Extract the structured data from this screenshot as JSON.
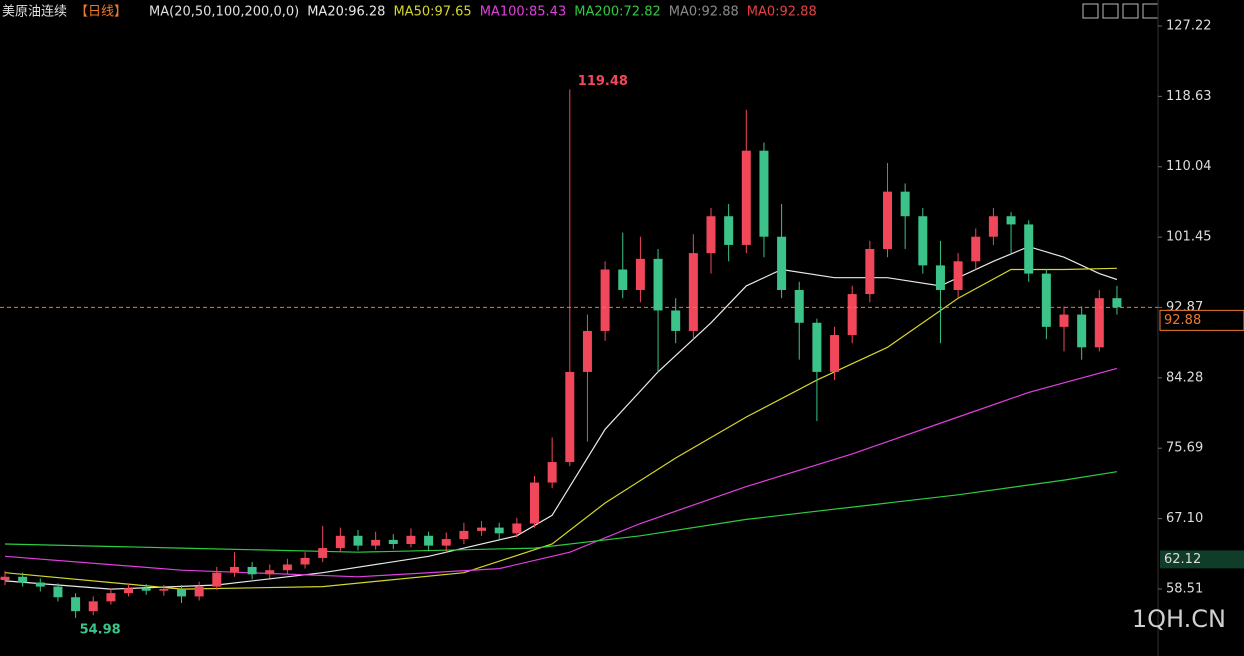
{
  "chart_data": {
    "type": "candlestick",
    "title": "美原油连续",
    "period": "【日线】",
    "ma_params": "MA(20,50,100,200,0,0)",
    "ylim": [
      50.33,
      130.39
    ],
    "yticks": [
      127.22,
      118.63,
      110.04,
      101.45,
      92.87,
      84.28,
      75.69,
      {
        "value": 67.1,
        "label": "67.10"
      },
      58.51
    ],
    "up_color": "#f0485a",
    "down_color": "#3cc389",
    "open": [
      59.6,
      60.0,
      59.3,
      58.8,
      57.5,
      55.8,
      57.0,
      58.0,
      58.6,
      58.3,
      58.5,
      57.6,
      58.8,
      60.5,
      61.2,
      60.3,
      60.8,
      61.5,
      62.3,
      63.5,
      65.0,
      63.8,
      64.5,
      64.0,
      65.0,
      63.8,
      64.6,
      65.6,
      66.0,
      65.3,
      66.5,
      71.5,
      74.0,
      85.0,
      90.0,
      97.5,
      95.0,
      98.8,
      92.5,
      90.0,
      99.5,
      104.0,
      100.5,
      112.0,
      101.5,
      95.0,
      91.0,
      85.0,
      89.5,
      94.5,
      100.0,
      107.0,
      104.0,
      98.0,
      95.0,
      98.5,
      101.5,
      104.0,
      103.0,
      97.0,
      90.5,
      92.0,
      88.0,
      94.0
    ],
    "high": [
      60.7,
      60.5,
      59.8,
      59.2,
      58.0,
      57.6,
      58.6,
      59.2,
      59.1,
      59.0,
      59.0,
      59.4,
      61.2,
      63.0,
      61.8,
      61.5,
      62.2,
      63.0,
      66.2,
      66.0,
      65.7,
      65.5,
      65.2,
      65.9,
      65.5,
      65.4,
      66.6,
      66.8,
      66.6,
      67.2,
      72.3,
      77.0,
      119.48,
      92.0,
      98.5,
      102.0,
      101.5,
      100.0,
      94.0,
      101.8,
      105.0,
      105.5,
      117.0,
      113.0,
      105.5,
      96.0,
      91.5,
      90.5,
      95.5,
      101.0,
      110.5,
      108.0,
      105.0,
      101.0,
      99.5,
      102.5,
      105.0,
      104.5,
      103.5,
      97.5,
      93.0,
      93.0,
      95.0,
      95.5
    ],
    "low": [
      59.0,
      58.8,
      58.2,
      57.0,
      54.98,
      55.3,
      56.6,
      57.6,
      57.8,
      57.7,
      56.8,
      57.1,
      58.4,
      60.0,
      59.7,
      59.8,
      60.3,
      61.0,
      61.8,
      63.0,
      63.2,
      63.3,
      63.4,
      63.6,
      63.1,
      63.0,
      64.0,
      65.0,
      64.6,
      64.8,
      66.0,
      70.8,
      73.5,
      76.5,
      88.8,
      94.0,
      93.5,
      85.0,
      88.5,
      89.0,
      97.0,
      98.5,
      99.5,
      99.0,
      94.0,
      86.5,
      79.0,
      84.0,
      88.5,
      93.5,
      99.0,
      100.0,
      97.0,
      88.5,
      94.0,
      97.5,
      100.5,
      99.5,
      96.0,
      89.0,
      87.5,
      86.5,
      87.5,
      92.0
    ],
    "close": [
      60.0,
      59.3,
      58.8,
      57.5,
      55.8,
      57.0,
      58.0,
      58.6,
      58.3,
      58.5,
      57.6,
      58.8,
      60.5,
      61.2,
      60.3,
      60.8,
      61.5,
      62.3,
      63.5,
      65.0,
      63.8,
      64.5,
      64.0,
      65.0,
      63.8,
      64.6,
      65.6,
      66.0,
      65.3,
      66.5,
      71.5,
      74.0,
      85.0,
      90.0,
      97.5,
      95.0,
      98.8,
      92.5,
      90.0,
      99.5,
      104.0,
      100.5,
      112.0,
      101.5,
      95.0,
      91.0,
      85.0,
      89.5,
      94.5,
      100.0,
      107.0,
      104.0,
      98.0,
      95.0,
      98.5,
      101.5,
      104.0,
      103.0,
      97.0,
      90.5,
      92.0,
      88.0,
      94.0,
      92.88
    ],
    "series": [
      {
        "name": "MA20",
        "legend_label": "MA20:96.28",
        "color": "#e8e8e8",
        "x": [
          0,
          6,
          12,
          18,
          24,
          29,
          31,
          34,
          37,
          40,
          42,
          44,
          47,
          50,
          53,
          56,
          58,
          60,
          62,
          63
        ],
        "values": [
          59.5,
          58.5,
          59.0,
          60.5,
          62.5,
          65.0,
          67.5,
          78,
          85,
          91,
          95.5,
          97.5,
          96.5,
          96.5,
          95.5,
          98.5,
          100.3,
          99,
          97,
          96.28
        ]
      },
      {
        "name": "MA50",
        "legend_label": "MA50:97.65",
        "color": "#d6d62a",
        "x": [
          0,
          10,
          18,
          26,
          31,
          34,
          38,
          42,
          46,
          50,
          54,
          57,
          60,
          63
        ],
        "values": [
          60.5,
          58.5,
          58.8,
          60.5,
          64.0,
          69,
          74.5,
          79.5,
          84.0,
          88.0,
          94.0,
          97.5,
          97.5,
          97.65
        ]
      },
      {
        "name": "MA100",
        "legend_label": "MA100:85.43",
        "color": "#e040e0",
        "x": [
          0,
          10,
          20,
          28,
          32,
          36,
          42,
          48,
          54,
          58,
          63
        ],
        "values": [
          62.5,
          60.8,
          60.0,
          61.0,
          63.0,
          66.5,
          71.0,
          75.0,
          79.5,
          82.5,
          85.43
        ]
      },
      {
        "name": "MA200",
        "legend_label": "MA200:72.82",
        "color": "#2ecc40",
        "x": [
          0,
          10,
          20,
          30,
          36,
          42,
          48,
          54,
          60,
          63
        ],
        "values": [
          64.0,
          63.5,
          63.0,
          63.5,
          65.0,
          67.0,
          68.5,
          70.0,
          71.8,
          72.82
        ]
      }
    ],
    "extra_legend": [
      {
        "label": "MA0:92.88",
        "color": "#8a8a8a"
      },
      {
        "label": "MA0:92.88",
        "color": "#e84040"
      }
    ],
    "high_annotation": 119.48,
    "low_annotation": 54.98,
    "last_price": 92.88,
    "marker_price": 62.12,
    "watermark": "1QH.CN"
  }
}
